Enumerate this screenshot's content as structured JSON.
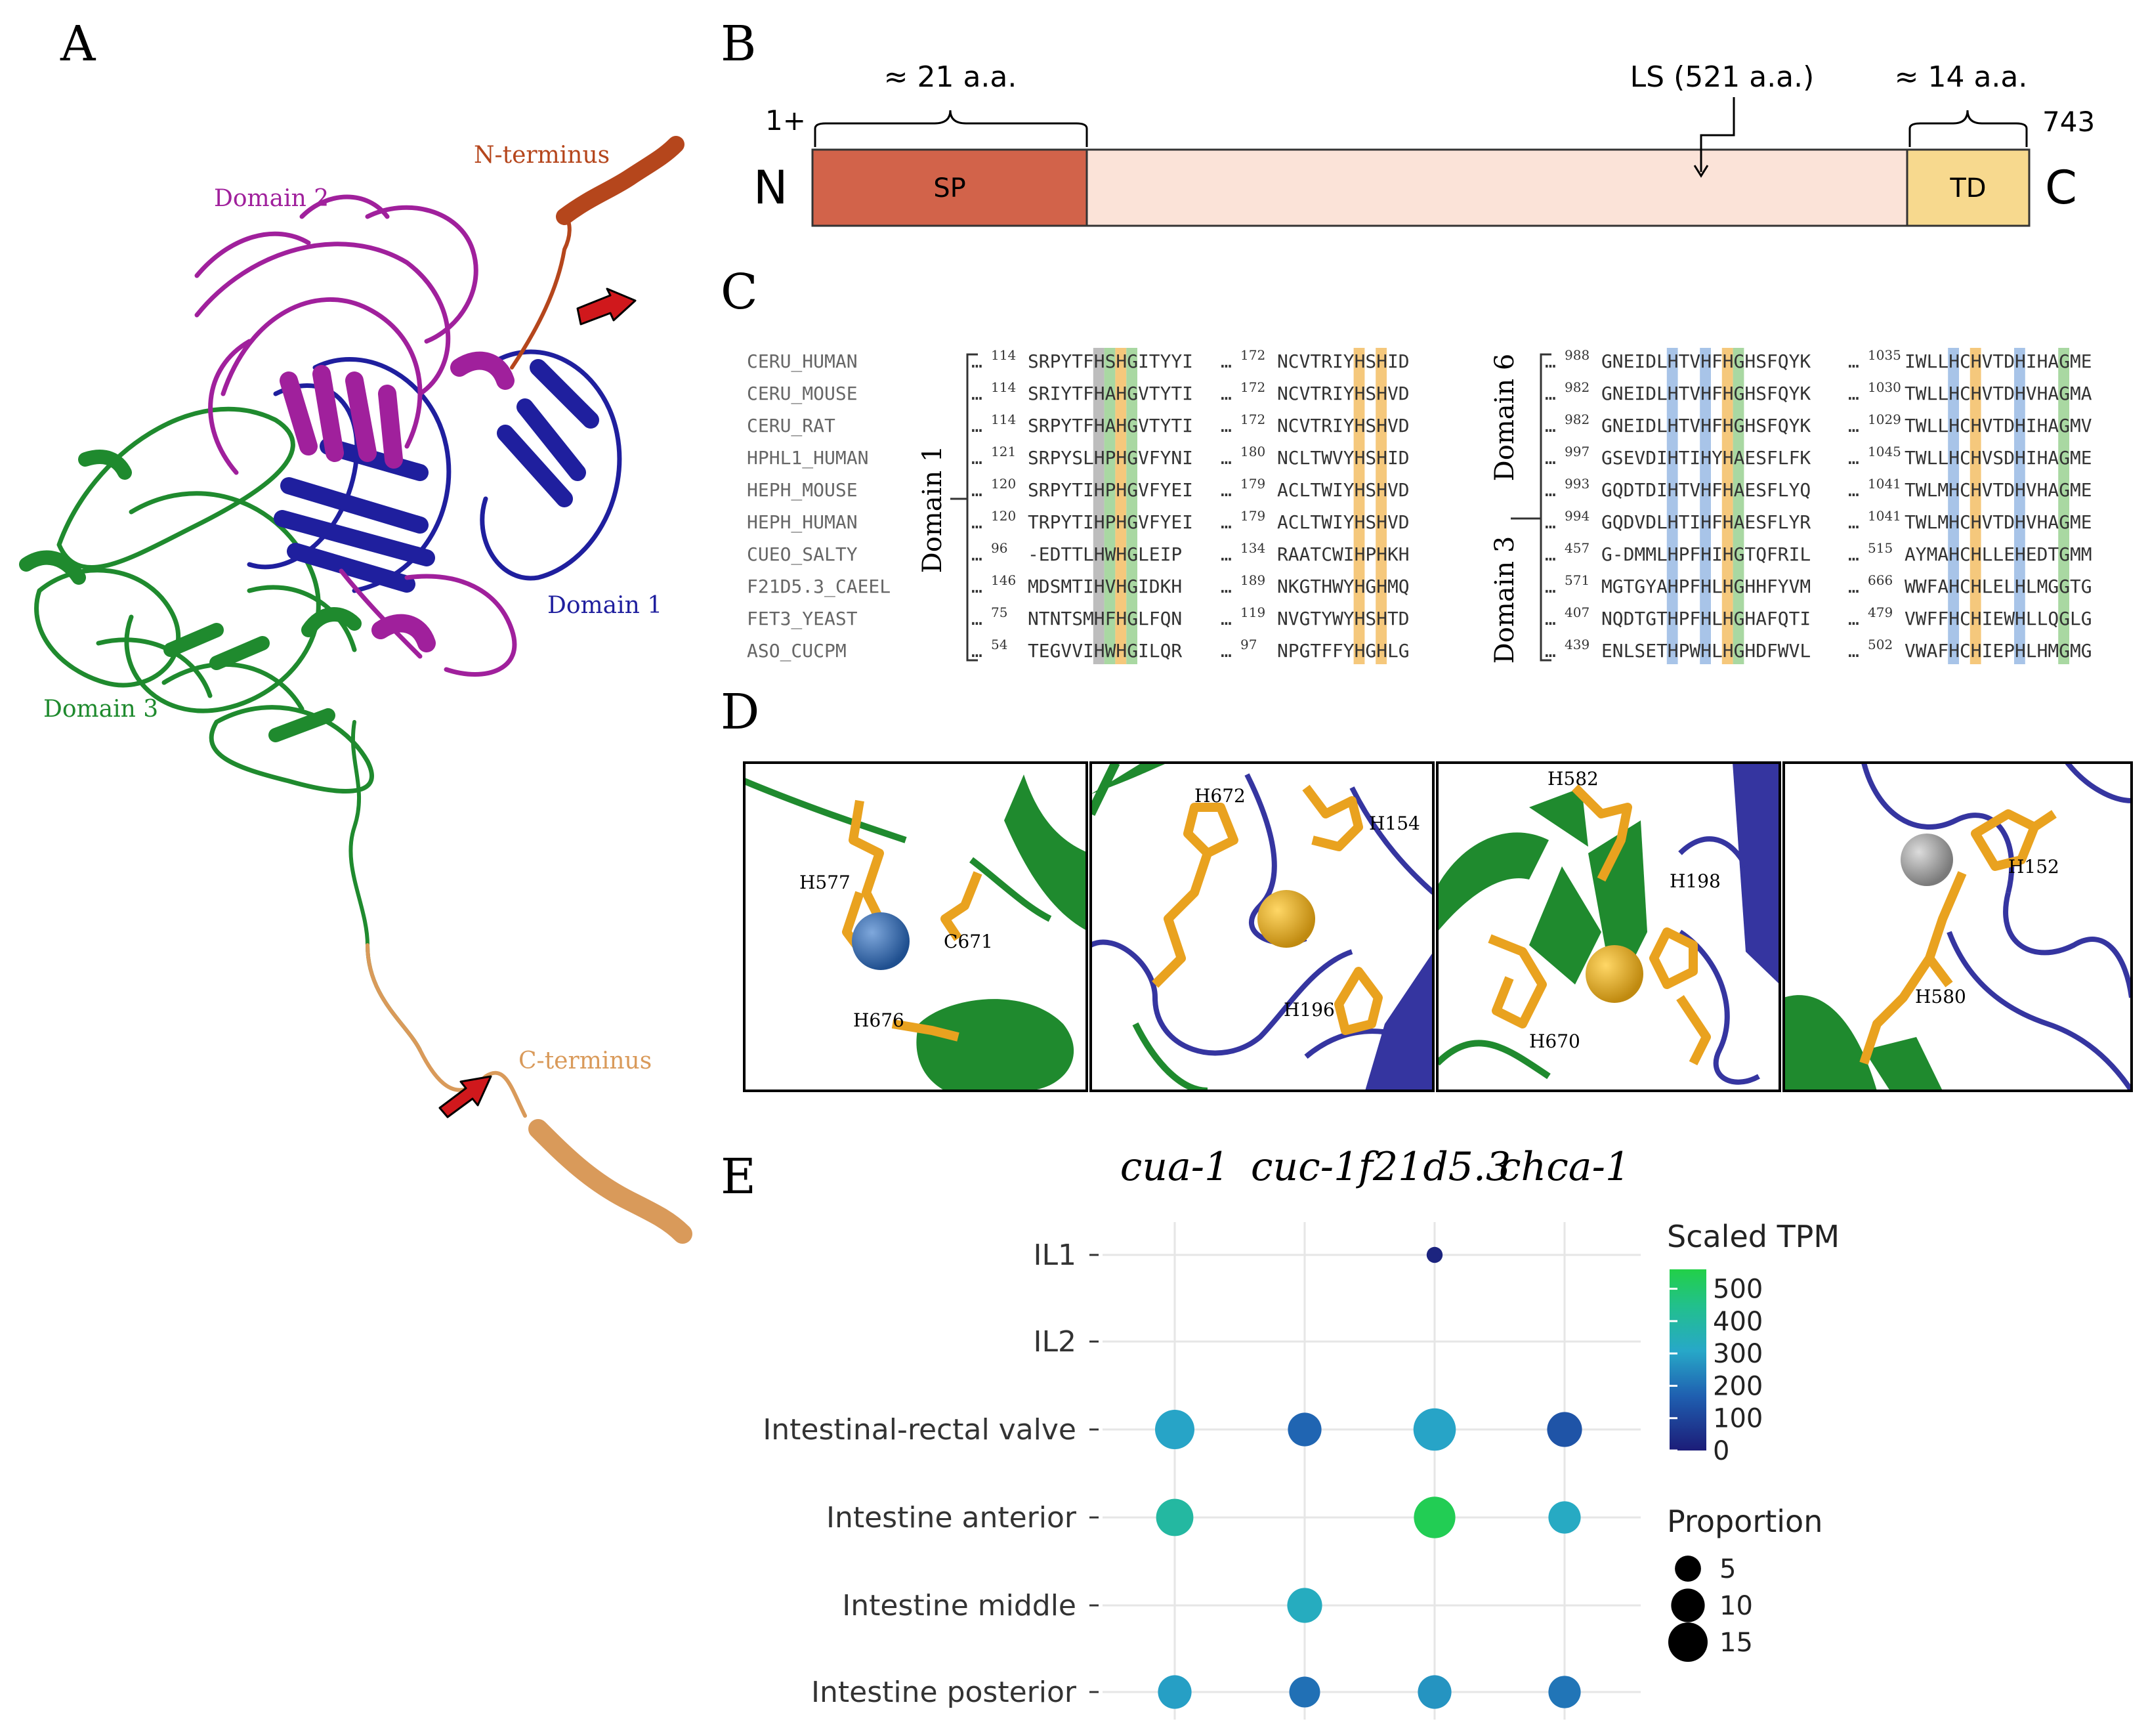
{
  "panel_labels": {
    "a": "A",
    "b": "B",
    "c": "C",
    "d": "D",
    "e": "E"
  },
  "panel_a": {
    "n_terminus": "N-terminus",
    "c_terminus": "C-terminus",
    "domain1": "Domain 1",
    "domain2": "Domain 2",
    "domain3": "Domain 3",
    "colors": {
      "domain1": "#1f1f9e",
      "domain2": "#a0209c",
      "domain3": "#1f8a2e",
      "n_term": "#b5461c",
      "c_term": "#d99a5a",
      "arrow": "#d0181c"
    }
  },
  "panel_b": {
    "sp_len": "≈ 21 a.a.",
    "ls": "LS (521 a.a.)",
    "td_len": "≈ 14 a.a.",
    "start": "1+",
    "end": "743",
    "n": "N",
    "c": "C",
    "sp": "SP",
    "td": "TD",
    "colors": {
      "sp": "#d2634a",
      "ls": "#fbe3d8",
      "td": "#f7d98e"
    }
  },
  "panel_c": {
    "names": [
      "CERU_HUMAN",
      "CERU_MOUSE",
      "CERU_RAT",
      "HPHL1_HUMAN",
      "HEPH_MOUSE",
      "HEPH_HUMAN",
      "CUEO_SALTY",
      "F21D5.3_CAEEL",
      "FET3_YEAST",
      "ASO_CUCPM"
    ],
    "left_group": "Domain 1",
    "right_group_top": "Domain 6",
    "right_group_bottom": "Domain 3",
    "ellipsis": "…",
    "block1": [
      {
        "n": "114",
        "s": "SRPYTFHSHGITYYI"
      },
      {
        "n": "114",
        "s": "SRIYTFHAHGVTYTI"
      },
      {
        "n": "114",
        "s": "SRPYTFHAHGVTYTI"
      },
      {
        "n": "121",
        "s": "SRPYSLHPHGVFYNI"
      },
      {
        "n": "120",
        "s": "SRPYTIHPHGVFYEI"
      },
      {
        "n": "120",
        "s": "TRPYTIHPHGVFYEI"
      },
      {
        "n": "96",
        "s": "-EDTTLHWHGLEIP"
      },
      {
        "n": "146",
        "s": "MDSMTIHVHGIDKH"
      },
      {
        "n": "75",
        "s": "NTNTSMHFHGLFQN"
      },
      {
        "n": "54",
        "s": "TEGVVIHWHGILQR"
      }
    ],
    "block2": [
      {
        "n": "172",
        "s": "NCVTRIYHSHID"
      },
      {
        "n": "172",
        "s": "NCVTRIYHSHVD"
      },
      {
        "n": "172",
        "s": "NCVTRIYHSHVD"
      },
      {
        "n": "180",
        "s": "NCLTWVYHSHID"
      },
      {
        "n": "179",
        "s": "ACLTWIYHSHVD"
      },
      {
        "n": "179",
        "s": "ACLTWIYHSHVD"
      },
      {
        "n": "134",
        "s": "RAATCWIHPHKH"
      },
      {
        "n": "189",
        "s": "NKGTHWYHGHMQ"
      },
      {
        "n": "119",
        "s": "NVGTYWYHSHTD"
      },
      {
        "n": "97",
        "s": "NPGTFFYHGHLG"
      }
    ],
    "block3": [
      {
        "n": "988",
        "s": "GNEIDLHTVHFHGHSFQYK"
      },
      {
        "n": "982",
        "s": "GNEIDLHTVHFHGHSFQYK"
      },
      {
        "n": "982",
        "s": "GNEIDLHTVHFHGHSFQYK"
      },
      {
        "n": "997",
        "s": "GSEVDIHTIHYHAESFLFK"
      },
      {
        "n": "993",
        "s": "GQDTDIHTVHFHAESFLYQ"
      },
      {
        "n": "994",
        "s": "GQDVDLHTIHFHAESFLYR"
      },
      {
        "n": "457",
        "s": "G-DMMLHPFHIHGTQFRIL"
      },
      {
        "n": "571",
        "s": "MGTGYAHPFHLHGHHFYVM"
      },
      {
        "n": "407",
        "s": "NQDTGTHPFHLHGHAFQTI"
      },
      {
        "n": "439",
        "s": "ENLSETHPWHLHGHDFWVL"
      }
    ],
    "block4": [
      {
        "n": "1035",
        "s": "IWLLHCHVTDHIHAGME"
      },
      {
        "n": "1030",
        "s": "TWLLHCHVTDHVHAGMA"
      },
      {
        "n": "1029",
        "s": "TWLLHCHVTDHIHAGMV"
      },
      {
        "n": "1045",
        "s": "TWLLHCHVSDHIHAGME"
      },
      {
        "n": "1041",
        "s": "TWLMHCHVTDHVHAGME"
      },
      {
        "n": "1041",
        "s": "TWLMHCHVTDHVHAGME"
      },
      {
        "n": "515",
        "s": "AYMAHCHLLEHEDTGMM"
      },
      {
        "n": "666",
        "s": "WWFAHCHLELHLMGGTG"
      },
      {
        "n": "479",
        "s": "VWFFHCHIEWHLLQGLG"
      },
      {
        "n": "502",
        "s": "VWAFHCHIEPHLHMGMG"
      }
    ],
    "colors": {
      "gray": "#bdbdbd",
      "green": "#a9d8a2",
      "orange": "#f5c87c",
      "blue": "#a8c4e8"
    }
  },
  "panel_d": {
    "insets": [
      {
        "labels": [
          "H577",
          "C671",
          "H676"
        ],
        "metal": "#2f66a8"
      },
      {
        "labels": [
          "H672",
          "H154",
          "H196"
        ],
        "metal": "#e3a51a"
      },
      {
        "labels": [
          "H582",
          "H198",
          "H670"
        ],
        "metal": "#e3a51a"
      },
      {
        "labels": [
          "H152",
          "H580"
        ],
        "metal": "#9a9a9a"
      }
    ]
  },
  "chart_data": {
    "type": "dot",
    "columns": [
      "cua-1",
      "cuc-1",
      "f21d5.3",
      "chca-1"
    ],
    "rows": [
      "IL1",
      "IL2",
      "Intestinal-rectal valve",
      "Intestine anterior",
      "Intestine middle",
      "Intestine posterior"
    ],
    "points": [
      {
        "row": "IL1",
        "col": "f21d5.3",
        "tpm": 20,
        "proportion": 1
      },
      {
        "row": "Intestinal-rectal valve",
        "col": "cua-1",
        "tpm": 300,
        "proportion": 15
      },
      {
        "row": "Intestinal-rectal valve",
        "col": "cuc-1",
        "tpm": 180,
        "proportion": 10
      },
      {
        "row": "Intestinal-rectal valve",
        "col": "f21d5.3",
        "tpm": 300,
        "proportion": 18
      },
      {
        "row": "Intestinal-rectal valve",
        "col": "chca-1",
        "tpm": 140,
        "proportion": 11
      },
      {
        "row": "Intestine anterior",
        "col": "cua-1",
        "tpm": 400,
        "proportion": 13
      },
      {
        "row": "Intestine anterior",
        "col": "f21d5.3",
        "tpm": 540,
        "proportion": 17
      },
      {
        "row": "Intestine anterior",
        "col": "chca-1",
        "tpm": 320,
        "proportion": 9
      },
      {
        "row": "Intestine middle",
        "col": "cuc-1",
        "tpm": 330,
        "proportion": 11
      },
      {
        "row": "Intestine posterior",
        "col": "cua-1",
        "tpm": 290,
        "proportion": 10
      },
      {
        "row": "Intestine posterior",
        "col": "cuc-1",
        "tpm": 200,
        "proportion": 8
      },
      {
        "row": "Intestine posterior",
        "col": "f21d5.3",
        "tpm": 270,
        "proportion": 10
      },
      {
        "row": "Intestine posterior",
        "col": "chca-1",
        "tpm": 210,
        "proportion": 9
      }
    ],
    "legend_color": {
      "title": "Scaled TPM",
      "ticks": [
        "500",
        "400",
        "300",
        "200",
        "100",
        "0"
      ],
      "range": [
        0,
        560
      ]
    },
    "legend_size": {
      "title": "Proportion",
      "ticks": [
        "5",
        "10",
        "15"
      ]
    }
  }
}
